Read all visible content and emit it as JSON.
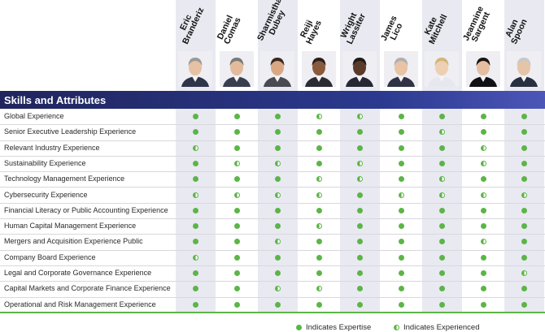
{
  "section_title": "Skills and Attributes",
  "colors": {
    "expertise": "#5cb547",
    "header_band": "#20255d",
    "column_shade": "#e9e9f1"
  },
  "directors": [
    {
      "name": "Eric\nBranderiz",
      "shaded": true
    },
    {
      "name": "Daniel\nComas",
      "shaded": false
    },
    {
      "name": "Sharmistha\nDubey",
      "shaded": true
    },
    {
      "name": "Reiji\nHayes",
      "shaded": false
    },
    {
      "name": "Wright\nLassiter",
      "shaded": true
    },
    {
      "name": "James\nLico",
      "shaded": false
    },
    {
      "name": "Kate\nMitchell",
      "shaded": true
    },
    {
      "name": "Jeannine\nSargent",
      "shaded": false
    },
    {
      "name": "Alan\nSpoon",
      "shaded": true
    }
  ],
  "skills": [
    {
      "label": "Global Experience",
      "marks": [
        "E",
        "E",
        "E",
        "H",
        "H",
        "E",
        "E",
        "E",
        "E"
      ]
    },
    {
      "label": "Senior Executive Leadership Experience",
      "marks": [
        "E",
        "E",
        "E",
        "E",
        "E",
        "E",
        "H",
        "E",
        "E"
      ]
    },
    {
      "label": "Relevant Industry Experience",
      "marks": [
        "H",
        "E",
        "E",
        "E",
        "E",
        "E",
        "E",
        "H",
        "E"
      ]
    },
    {
      "label": "Sustainability Experience",
      "marks": [
        "E",
        "H",
        "H",
        "E",
        "H",
        "E",
        "E",
        "H",
        "E"
      ]
    },
    {
      "label": "Technology Management Experience",
      "marks": [
        "E",
        "E",
        "E",
        "H",
        "H",
        "E",
        "H",
        "E",
        "E"
      ]
    },
    {
      "label": "Cybersecurity Experience",
      "marks": [
        "H",
        "H",
        "H",
        "H",
        "E",
        "H",
        "H",
        "H",
        "H"
      ]
    },
    {
      "label": "Financial Literacy or Public Accounting Experience",
      "marks": [
        "E",
        "E",
        "E",
        "E",
        "E",
        "E",
        "E",
        "E",
        "E"
      ]
    },
    {
      "label": "Human Capital Management Experience",
      "marks": [
        "E",
        "E",
        "E",
        "H",
        "E",
        "E",
        "E",
        "E",
        "E"
      ]
    },
    {
      "label": "Mergers and Acquisition Experience Public",
      "marks": [
        "E",
        "E",
        "H",
        "E",
        "E",
        "E",
        "E",
        "H",
        "E"
      ]
    },
    {
      "label": "Company Board Experience",
      "marks": [
        "H",
        "E",
        "E",
        "E",
        "E",
        "E",
        "E",
        "E",
        "E"
      ]
    },
    {
      "label": "Legal and Corporate Governance Experience",
      "marks": [
        "E",
        "E",
        "E",
        "E",
        "E",
        "E",
        "E",
        "E",
        "H"
      ]
    },
    {
      "label": "Capital Markets and Corporate Finance Experience",
      "marks": [
        "E",
        "E",
        "H",
        "H",
        "E",
        "E",
        "E",
        "E",
        "E"
      ]
    },
    {
      "label": "Operational and Risk Management Experience",
      "marks": [
        "E",
        "E",
        "E",
        "E",
        "E",
        "E",
        "E",
        "E",
        "E"
      ]
    }
  ],
  "legend": {
    "expertise_label": "Indicates Expertise",
    "experienced_label": "Indicates Experienced"
  }
}
